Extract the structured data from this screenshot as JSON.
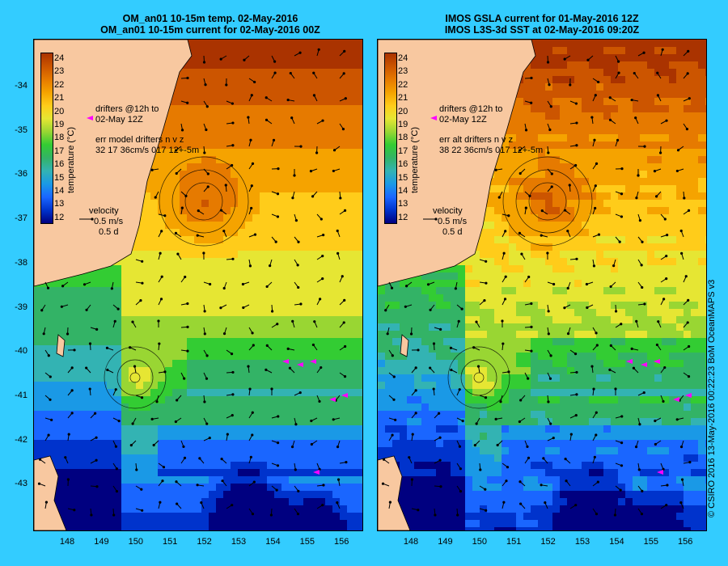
{
  "titles": {
    "left": [
      "OM_an01 10-15m temp. 02-May-2016",
      "OM_an01 10-15m current for 02-May-2016 00Z"
    ],
    "right": [
      "IMOS GSLA current for 01-May-2016 12Z",
      "IMOS L3S-3d SST at 02-May-2016 09:20Z"
    ]
  },
  "axes": {
    "lat_ticks": [
      "-34",
      "-35",
      "-36",
      "-37",
      "-38",
      "-39",
      "-40",
      "-41",
      "-42",
      "-43"
    ],
    "lon_ticks": [
      "148",
      "149",
      "150",
      "151",
      "152",
      "153",
      "154",
      "155",
      "156"
    ],
    "lat_range": [
      -44,
      -33.1
    ],
    "lon_range": [
      147.1,
      156.5
    ]
  },
  "colorbar": {
    "ticks": [
      "24",
      "23",
      "22",
      "21",
      "20",
      "19",
      "18",
      "17",
      "16",
      "15",
      "14",
      "13",
      "12"
    ],
    "label": "temperature (°C)",
    "range": [
      12,
      24.5
    ],
    "colors": [
      "#000080",
      "#0033cc",
      "#1a66ff",
      "#1a99e6",
      "#33b3b3",
      "#33b366",
      "#33cc33",
      "#99d633",
      "#e6e633",
      "#ffcc1a",
      "#f5a300",
      "#e67a00",
      "#cc5500",
      "#aa3300"
    ]
  },
  "left_panel": {
    "drifters_label": [
      "drifters @12h to",
      "02-May 12Z"
    ],
    "err_label": [
      "err model drifters n v z",
      "32 17 36cm/s 017 12+-5m"
    ],
    "velocity": [
      "velocity",
      "0.5 m/s",
      "0.5 d"
    ]
  },
  "right_panel": {
    "drifters_label": [
      "drifters @12h to",
      "02-May 12Z"
    ],
    "err_label": [
      "err alt drifters n v z",
      "38 22 36cm/s 017 12+-5m"
    ],
    "velocity": [
      "velocity",
      "0.5 m/s",
      "0.5 d"
    ]
  },
  "credit": "© CSIRO 2016  13-May-2016 00:22:23 BoM OceanMAPS v3",
  "colors": {
    "land": "#f8c8a0",
    "background": "#33ccff",
    "drifter": "#ff00ff"
  }
}
